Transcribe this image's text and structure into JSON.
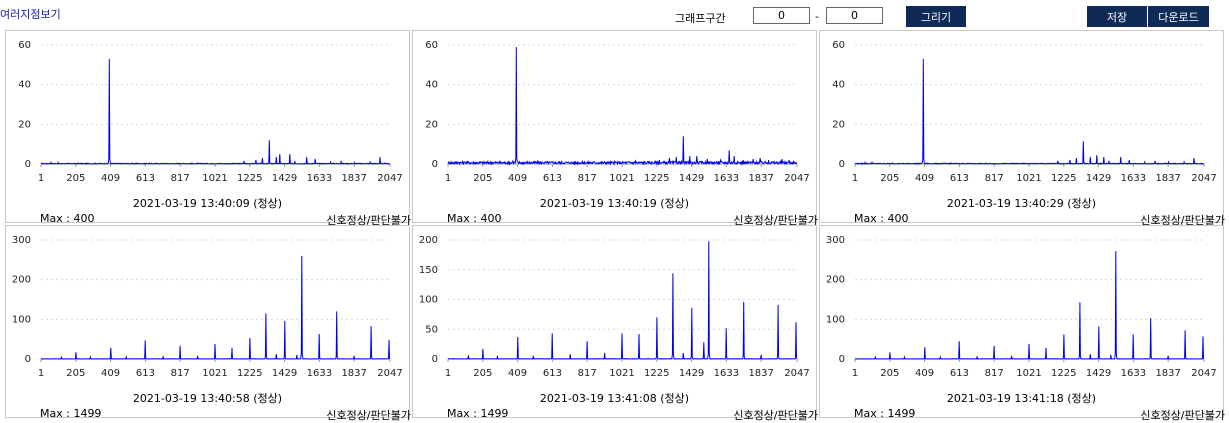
{
  "header": {
    "title": "여러지점보기",
    "range_label": "그래프구간",
    "range_from": "0",
    "range_sep": "-",
    "range_to": "0",
    "draw_button": "그리기",
    "save_button": "저장",
    "download_button": "다운로드"
  },
  "colors": {
    "line": "#0000ee",
    "button_bg": "#0f2a57",
    "grid": "#d9d9d9"
  },
  "chart_data": [
    {
      "type": "line",
      "xtick_labels": [
        "1",
        "205",
        "409",
        "613",
        "817",
        "1021",
        "1225",
        "1429",
        "1633",
        "1837",
        "2047"
      ],
      "xlim": [
        1,
        2047
      ],
      "ylim": [
        0,
        60
      ],
      "yticks": [
        0,
        20,
        40,
        60
      ],
      "grid": true,
      "peaks": [
        [
          60,
          0.8
        ],
        [
          100,
          0.8
        ],
        [
          220,
          0.5
        ],
        [
          400,
          53
        ],
        [
          560,
          0.5
        ],
        [
          1190,
          1.5
        ],
        [
          1260,
          2
        ],
        [
          1300,
          3
        ],
        [
          1340,
          12
        ],
        [
          1380,
          3.5
        ],
        [
          1400,
          5
        ],
        [
          1460,
          5
        ],
        [
          1490,
          1.5
        ],
        [
          1560,
          3.5
        ],
        [
          1610,
          2.5
        ],
        [
          1700,
          1
        ],
        [
          1760,
          1.5
        ],
        [
          1840,
          0.8
        ],
        [
          1930,
          1
        ],
        [
          1990,
          3.5
        ]
      ],
      "noise": 0.4,
      "timestamp": "2021-03-19 13:40:09 (정상)",
      "max_label": "Max : 400",
      "status": "신호정상/판단불가"
    },
    {
      "type": "line",
      "xtick_labels": [
        "1",
        "205",
        "409",
        "613",
        "817",
        "1021",
        "1225",
        "1429",
        "1633",
        "1837",
        "2047"
      ],
      "xlim": [
        1,
        2047
      ],
      "ylim": [
        0,
        60
      ],
      "yticks": [
        0,
        20,
        40,
        60
      ],
      "grid": true,
      "peaks": [
        [
          60,
          0.8
        ],
        [
          100,
          0.8
        ],
        [
          380,
          1.5
        ],
        [
          400,
          59
        ],
        [
          560,
          0.5
        ],
        [
          1100,
          1.5
        ],
        [
          1240,
          2
        ],
        [
          1300,
          3
        ],
        [
          1340,
          3.5
        ],
        [
          1380,
          14
        ],
        [
          1420,
          4
        ],
        [
          1460,
          4
        ],
        [
          1520,
          2.5
        ],
        [
          1600,
          2
        ],
        [
          1650,
          7
        ],
        [
          1680,
          4
        ],
        [
          1730,
          2
        ],
        [
          1790,
          2.5
        ],
        [
          1830,
          3
        ],
        [
          1880,
          2
        ],
        [
          1960,
          2.5
        ],
        [
          2000,
          2
        ]
      ],
      "noise": 1.3,
      "timestamp": "2021-03-19 13:40:19 (정상)",
      "max_label": "Max : 400",
      "status": "신호정상/판단불가"
    },
    {
      "type": "line",
      "xtick_labels": [
        "1",
        "205",
        "409",
        "613",
        "817",
        "1021",
        "1225",
        "1429",
        "1633",
        "1837",
        "2047"
      ],
      "xlim": [
        1,
        2047
      ],
      "ylim": [
        0,
        60
      ],
      "yticks": [
        0,
        20,
        40,
        60
      ],
      "grid": true,
      "peaks": [
        [
          60,
          0.8
        ],
        [
          100,
          0.8
        ],
        [
          220,
          0.5
        ],
        [
          400,
          53
        ],
        [
          560,
          0.5
        ],
        [
          1190,
          1.5
        ],
        [
          1260,
          2
        ],
        [
          1300,
          3
        ],
        [
          1340,
          11.5
        ],
        [
          1380,
          3.5
        ],
        [
          1420,
          4.5
        ],
        [
          1460,
          3.5
        ],
        [
          1490,
          1.5
        ],
        [
          1560,
          3.5
        ],
        [
          1610,
          2
        ],
        [
          1700,
          1
        ],
        [
          1760,
          1.5
        ],
        [
          1840,
          1
        ],
        [
          1930,
          1
        ],
        [
          1990,
          3
        ]
      ],
      "noise": 0.4,
      "timestamp": "2021-03-19 13:40:29 (정상)",
      "max_label": "Max : 400",
      "status": "신호정상/판단불가"
    },
    {
      "type": "line",
      "xtick_labels": [
        "1",
        "205",
        "409",
        "613",
        "817",
        "1021",
        "1225",
        "1429",
        "1633",
        "1837",
        "2047"
      ],
      "xlim": [
        1,
        2047
      ],
      "ylim": [
        0,
        300
      ],
      "yticks": [
        0,
        100,
        200,
        300
      ],
      "grid": true,
      "peaks": [
        [
          120,
          6
        ],
        [
          205,
          17
        ],
        [
          290,
          5
        ],
        [
          409,
          28
        ],
        [
          500,
          5
        ],
        [
          613,
          47
        ],
        [
          717,
          7
        ],
        [
          817,
          33
        ],
        [
          920,
          8
        ],
        [
          1021,
          38
        ],
        [
          1120,
          28
        ],
        [
          1225,
          53
        ],
        [
          1320,
          115
        ],
        [
          1380,
          12
        ],
        [
          1429,
          96
        ],
        [
          1500,
          10
        ],
        [
          1529,
          260
        ],
        [
          1633,
          63
        ],
        [
          1733,
          120
        ],
        [
          1837,
          8
        ],
        [
          1937,
          83
        ],
        [
          2040,
          48
        ]
      ],
      "noise": 0.6,
      "timestamp": "2021-03-19 13:40:58 (정상)",
      "max_label": "Max : 1499",
      "status": "신호정상/판단불가"
    },
    {
      "type": "line",
      "xtick_labels": [
        "1",
        "205",
        "409",
        "613",
        "817",
        "1021",
        "1225",
        "1429",
        "1633",
        "1837",
        "2047"
      ],
      "xlim": [
        1,
        2047
      ],
      "ylim": [
        0,
        200
      ],
      "yticks": [
        0,
        50,
        100,
        150,
        200
      ],
      "grid": true,
      "peaks": [
        [
          120,
          6
        ],
        [
          205,
          17
        ],
        [
          290,
          5
        ],
        [
          409,
          37
        ],
        [
          500,
          5
        ],
        [
          613,
          43
        ],
        [
          717,
          8
        ],
        [
          817,
          30
        ],
        [
          920,
          10
        ],
        [
          1021,
          43
        ],
        [
          1120,
          42
        ],
        [
          1225,
          70
        ],
        [
          1320,
          144
        ],
        [
          1380,
          10
        ],
        [
          1429,
          86
        ],
        [
          1500,
          28
        ],
        [
          1529,
          198
        ],
        [
          1633,
          52
        ],
        [
          1733,
          96
        ],
        [
          1837,
          7
        ],
        [
          1937,
          91
        ],
        [
          2040,
          62
        ]
      ],
      "noise": 0.5,
      "timestamp": "2021-03-19 13:41:08 (정상)",
      "max_label": "Max : 1499",
      "status": "신호정상/판단불가"
    },
    {
      "type": "line",
      "xtick_labels": [
        "1",
        "205",
        "409",
        "613",
        "817",
        "1021",
        "1225",
        "1429",
        "1633",
        "1837",
        "2047"
      ],
      "xlim": [
        1,
        2047
      ],
      "ylim": [
        0,
        300
      ],
      "yticks": [
        0,
        100,
        200,
        300
      ],
      "grid": true,
      "peaks": [
        [
          120,
          6
        ],
        [
          205,
          17
        ],
        [
          290,
          5
        ],
        [
          409,
          30
        ],
        [
          500,
          5
        ],
        [
          613,
          45
        ],
        [
          717,
          7
        ],
        [
          817,
          33
        ],
        [
          920,
          8
        ],
        [
          1021,
          38
        ],
        [
          1120,
          28
        ],
        [
          1225,
          62
        ],
        [
          1320,
          143
        ],
        [
          1380,
          12
        ],
        [
          1429,
          82
        ],
        [
          1500,
          10
        ],
        [
          1529,
          272
        ],
        [
          1633,
          62
        ],
        [
          1733,
          103
        ],
        [
          1837,
          8
        ],
        [
          1937,
          72
        ],
        [
          2040,
          57
        ]
      ],
      "noise": 0.6,
      "timestamp": "2021-03-19 13:41:18 (정상)",
      "max_label": "Max : 1499",
      "status": "신호정상/판단불가"
    }
  ]
}
